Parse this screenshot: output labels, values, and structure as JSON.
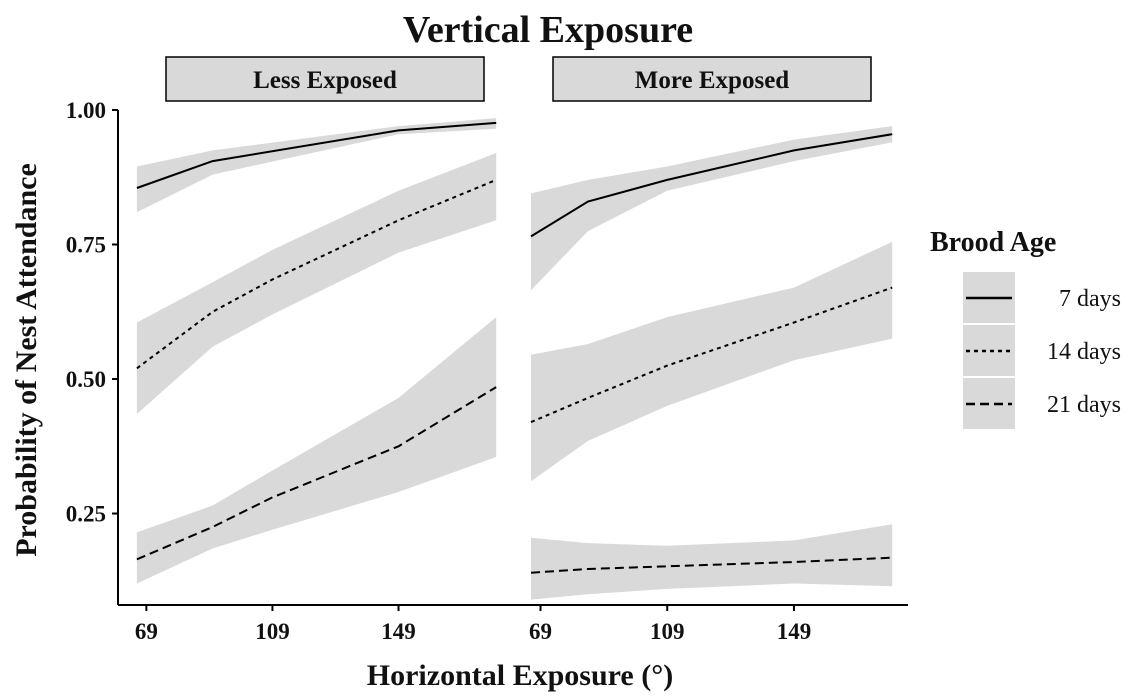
{
  "chart_data": {
    "type": "line",
    "title": "Vertical Exposure",
    "xlabel": "Horizontal Exposure (°)",
    "ylabel": "Probability of Nest Attendance",
    "xlim": [
      60,
      185
    ],
    "ylim": [
      0.08,
      1.0
    ],
    "x_ticks": [
      69,
      109,
      149
    ],
    "y_ticks": [
      0.25,
      0.5,
      0.75,
      1.0
    ],
    "y_tick_labels": [
      "0.25",
      "0.50",
      "0.75",
      "1.00"
    ],
    "grid": false,
    "legend": {
      "title": "Brood Age",
      "position": "right",
      "entries": [
        {
          "label": "7 days",
          "dash": "solid"
        },
        {
          "label": "14 days",
          "dash": "dotted"
        },
        {
          "label": "21 days",
          "dash": "dashed"
        }
      ]
    },
    "ribbon_color": "#d9d9d9",
    "line_color": "#000000",
    "panels": [
      {
        "label": "Less Exposed",
        "series": [
          {
            "name": "7 days",
            "dash": "solid",
            "x": [
              66,
              90,
              149,
              180
            ],
            "y": [
              0.855,
              0.905,
              0.962,
              0.976
            ],
            "lower": [
              0.81,
              0.88,
              0.955,
              0.965
            ],
            "upper": [
              0.895,
              0.925,
              0.97,
              0.985
            ]
          },
          {
            "name": "14 days",
            "dash": "dotted",
            "x": [
              66,
              90,
              109,
              149,
              180
            ],
            "y": [
              0.52,
              0.625,
              0.685,
              0.795,
              0.87
            ],
            "lower": [
              0.435,
              0.56,
              0.62,
              0.735,
              0.795
            ],
            "upper": [
              0.605,
              0.68,
              0.74,
              0.85,
              0.92
            ]
          },
          {
            "name": "21 days",
            "dash": "dashed",
            "x": [
              66,
              90,
              109,
              149,
              180
            ],
            "y": [
              0.165,
              0.225,
              0.28,
              0.375,
              0.485
            ],
            "lower": [
              0.12,
              0.185,
              0.22,
              0.29,
              0.355
            ],
            "upper": [
              0.215,
              0.265,
              0.33,
              0.465,
              0.615
            ]
          }
        ]
      },
      {
        "label": "More Exposed",
        "series": [
          {
            "name": "7 days",
            "dash": "solid",
            "x": [
              66,
              84,
              109,
              149,
              180
            ],
            "y": [
              0.765,
              0.83,
              0.87,
              0.925,
              0.955
            ],
            "lower": [
              0.665,
              0.775,
              0.85,
              0.905,
              0.94
            ],
            "upper": [
              0.845,
              0.87,
              0.895,
              0.945,
              0.97
            ]
          },
          {
            "name": "14 days",
            "dash": "dotted",
            "x": [
              66,
              84,
              109,
              149,
              180
            ],
            "y": [
              0.42,
              0.465,
              0.525,
              0.605,
              0.67
            ],
            "lower": [
              0.31,
              0.385,
              0.45,
              0.535,
              0.575
            ],
            "upper": [
              0.545,
              0.565,
              0.615,
              0.67,
              0.755
            ]
          },
          {
            "name": "21 days",
            "dash": "dashed",
            "x": [
              66,
              84,
              109,
              149,
              180
            ],
            "y": [
              0.14,
              0.147,
              0.152,
              0.16,
              0.168
            ],
            "lower": [
              0.09,
              0.1,
              0.11,
              0.12,
              0.115
            ],
            "upper": [
              0.205,
              0.195,
              0.19,
              0.2,
              0.23
            ]
          }
        ]
      }
    ]
  }
}
